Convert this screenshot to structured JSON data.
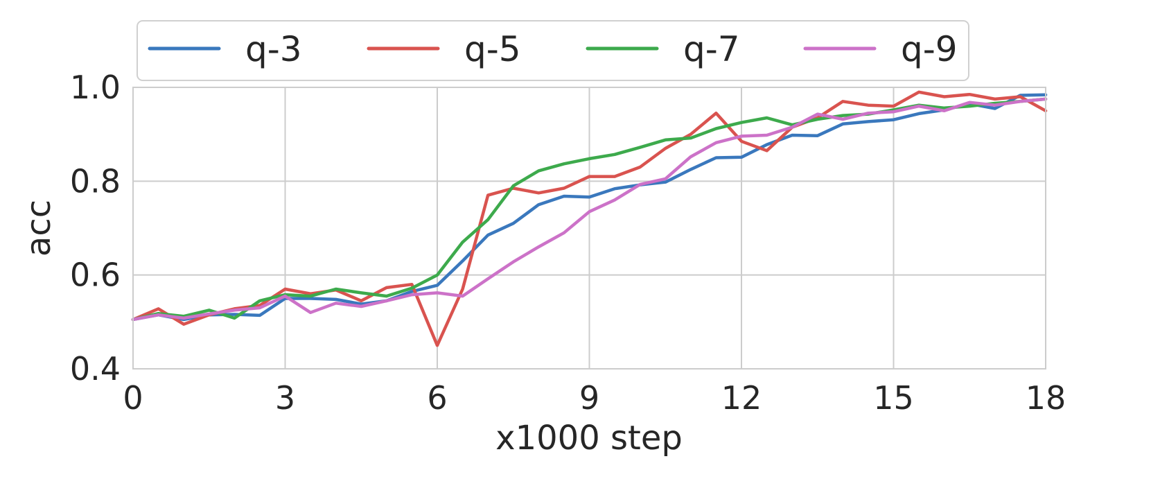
{
  "chart_data": {
    "type": "line",
    "xlabel": "x1000 step",
    "ylabel": "acc",
    "xlim": [
      0,
      18
    ],
    "ylim": [
      0.4,
      1.0
    ],
    "xticks": [
      "0",
      "3",
      "6",
      "9",
      "12",
      "15",
      "18"
    ],
    "xtick_values": [
      0,
      3,
      6,
      9,
      12,
      15,
      18
    ],
    "yticks": [
      "0.4",
      "0.6",
      "0.8",
      "1.0"
    ],
    "ytick_values": [
      0.4,
      0.6,
      0.8,
      1.0
    ],
    "grid": true,
    "legend_position": "top",
    "x": [
      0,
      0.5,
      1,
      1.5,
      2,
      2.5,
      3,
      3.5,
      4,
      4.5,
      5,
      5.5,
      6,
      6.5,
      7,
      7.5,
      8,
      8.5,
      9,
      9.5,
      10,
      10.5,
      11,
      11.5,
      12,
      12.5,
      13,
      13.5,
      14,
      14.5,
      15,
      15.5,
      16,
      16.5,
      17,
      17.5,
      18
    ],
    "series": [
      {
        "name": "q-3",
        "color": "#3a78bd",
        "values": [
          0.505,
          0.515,
          0.505,
          0.515,
          0.516,
          0.514,
          0.55,
          0.55,
          0.548,
          0.538,
          0.545,
          0.565,
          0.578,
          0.63,
          0.685,
          0.71,
          0.75,
          0.768,
          0.766,
          0.784,
          0.792,
          0.798,
          0.825,
          0.85,
          0.851,
          0.878,
          0.898,
          0.897,
          0.922,
          0.927,
          0.931,
          0.944,
          0.952,
          0.965,
          0.955,
          0.983,
          0.984
        ]
      },
      {
        "name": "q-5",
        "color": "#d9534f",
        "values": [
          0.505,
          0.528,
          0.495,
          0.515,
          0.528,
          0.535,
          0.57,
          0.56,
          0.568,
          0.545,
          0.573,
          0.58,
          0.45,
          0.57,
          0.77,
          0.785,
          0.775,
          0.785,
          0.81,
          0.81,
          0.83,
          0.87,
          0.9,
          0.945,
          0.885,
          0.865,
          0.915,
          0.935,
          0.97,
          0.962,
          0.96,
          0.99,
          0.98,
          0.985,
          0.975,
          0.98,
          0.95
        ]
      },
      {
        "name": "q-7",
        "color": "#3daa4c",
        "values": [
          0.505,
          0.518,
          0.512,
          0.525,
          0.508,
          0.545,
          0.558,
          0.555,
          0.57,
          0.562,
          0.555,
          0.572,
          0.6,
          0.67,
          0.718,
          0.79,
          0.822,
          0.837,
          0.848,
          0.857,
          0.872,
          0.888,
          0.892,
          0.912,
          0.925,
          0.935,
          0.92,
          0.932,
          0.94,
          0.943,
          0.952,
          0.962,
          0.956,
          0.96,
          0.966,
          0.97,
          0.975
        ]
      },
      {
        "name": "q-9",
        "color": "#cc72c8",
        "values": [
          0.505,
          0.515,
          0.508,
          0.517,
          0.525,
          0.53,
          0.555,
          0.52,
          0.54,
          0.533,
          0.545,
          0.558,
          0.562,
          0.555,
          0.592,
          0.628,
          0.66,
          0.69,
          0.735,
          0.76,
          0.793,
          0.805,
          0.852,
          0.882,
          0.896,
          0.898,
          0.915,
          0.943,
          0.932,
          0.945,
          0.948,
          0.96,
          0.95,
          0.968,
          0.962,
          0.97,
          0.975
        ]
      }
    ]
  }
}
